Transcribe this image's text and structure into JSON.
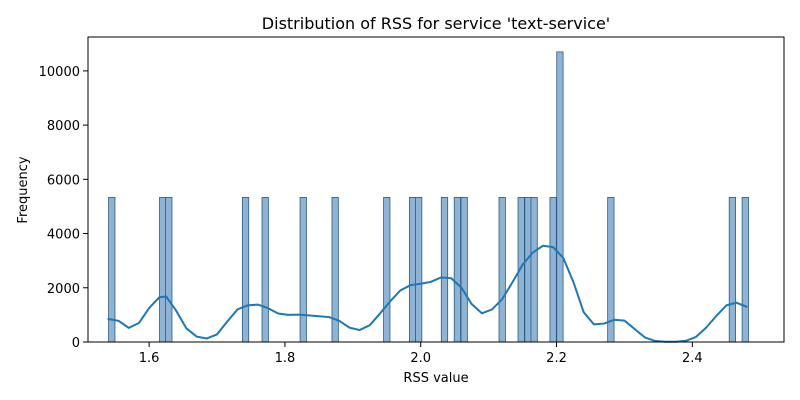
{
  "chart_data": {
    "type": "bar",
    "title": "Distribution of RSS for service 'text-service'",
    "xlabel": "RSS value",
    "ylabel": "Frequency",
    "xlim": [
      1.51,
      2.535
    ],
    "ylim": [
      0,
      11250
    ],
    "x_ticks": [
      1.6,
      1.8,
      2.0,
      2.2,
      2.4
    ],
    "x_tick_labels": [
      "1.6",
      "1.8",
      "2.0",
      "2.2",
      "2.4"
    ],
    "y_ticks": [
      0,
      2000,
      4000,
      6000,
      8000,
      10000
    ],
    "y_tick_labels": [
      "0",
      "2000",
      "4000",
      "6000",
      "8000",
      "10000"
    ],
    "bin_width": 0.0094,
    "bar_color": "#8fb3d4",
    "bar_edge_color": "#2c5b7f",
    "kde_color": "#1f77b4",
    "grid": false,
    "histogram": [
      {
        "x": 1.545,
        "count": 5333
      },
      {
        "x": 1.62,
        "count": 5333
      },
      {
        "x": 1.629,
        "count": 5333
      },
      {
        "x": 1.742,
        "count": 5333
      },
      {
        "x": 1.771,
        "count": 5333
      },
      {
        "x": 1.827,
        "count": 5333
      },
      {
        "x": 1.874,
        "count": 5333
      },
      {
        "x": 1.95,
        "count": 5333
      },
      {
        "x": 1.988,
        "count": 5333
      },
      {
        "x": 1.997,
        "count": 5333
      },
      {
        "x": 2.035,
        "count": 5333
      },
      {
        "x": 2.054,
        "count": 5333
      },
      {
        "x": 2.064,
        "count": 5333
      },
      {
        "x": 2.12,
        "count": 5333
      },
      {
        "x": 2.148,
        "count": 5333
      },
      {
        "x": 2.158,
        "count": 5333
      },
      {
        "x": 2.167,
        "count": 5333
      },
      {
        "x": 2.195,
        "count": 5333
      },
      {
        "x": 2.205,
        "count": 10700
      },
      {
        "x": 2.28,
        "count": 5333
      },
      {
        "x": 2.459,
        "count": 5333
      },
      {
        "x": 2.478,
        "count": 5333
      }
    ],
    "kde": {
      "x": [
        1.54,
        1.555,
        1.57,
        1.585,
        1.6,
        1.615,
        1.625,
        1.64,
        1.655,
        1.67,
        1.685,
        1.7,
        1.715,
        1.73,
        1.745,
        1.76,
        1.775,
        1.79,
        1.805,
        1.82,
        1.835,
        1.85,
        1.865,
        1.88,
        1.895,
        1.91,
        1.925,
        1.94,
        1.955,
        1.97,
        1.985,
        2.0,
        2.015,
        2.03,
        2.045,
        2.06,
        2.075,
        2.09,
        2.105,
        2.12,
        2.135,
        2.15,
        2.165,
        2.18,
        2.195,
        2.21,
        2.225,
        2.24,
        2.255,
        2.27,
        2.285,
        2.3,
        2.315,
        2.33,
        2.345,
        2.36,
        2.375,
        2.39,
        2.405,
        2.42,
        2.435,
        2.45,
        2.465,
        2.48
      ],
      "y": [
        850,
        780,
        520,
        700,
        1250,
        1650,
        1680,
        1150,
        500,
        200,
        130,
        280,
        750,
        1200,
        1350,
        1380,
        1250,
        1050,
        1000,
        1010,
        980,
        950,
        920,
        780,
        530,
        440,
        620,
        1050,
        1500,
        1900,
        2100,
        2150,
        2220,
        2380,
        2350,
        2000,
        1400,
        1060,
        1200,
        1580,
        2200,
        2850,
        3300,
        3550,
        3500,
        3100,
        2200,
        1100,
        650,
        680,
        820,
        790,
        480,
        170,
        40,
        10,
        10,
        40,
        180,
        520,
        950,
        1350,
        1450,
        1300
      ]
    }
  }
}
